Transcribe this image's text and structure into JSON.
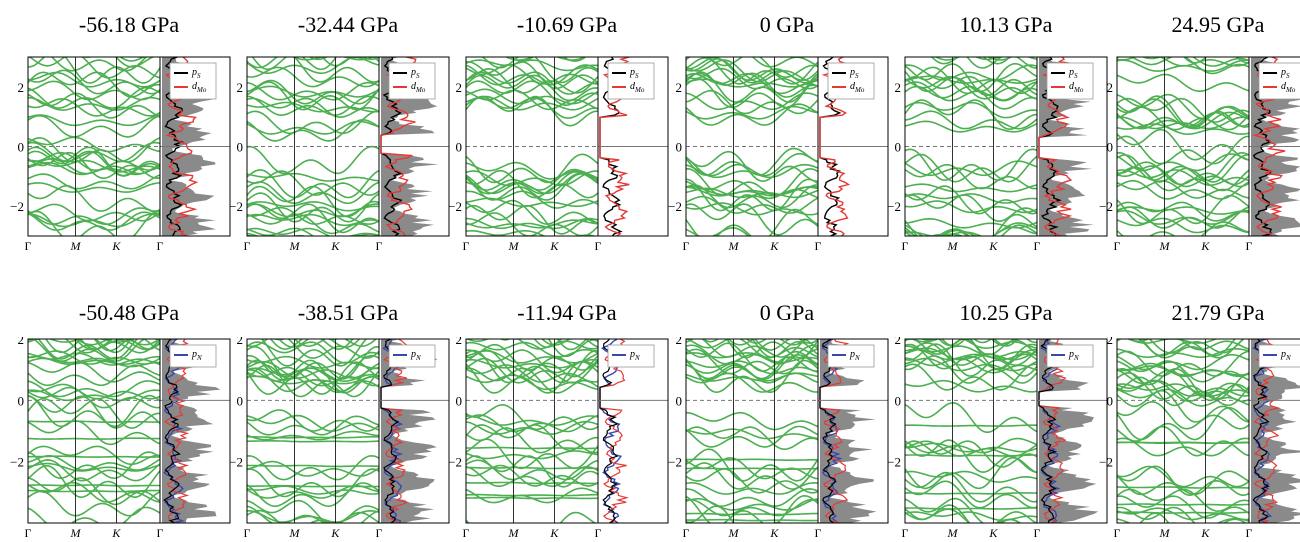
{
  "figure": {
    "band_color": "#4caf50",
    "dos_fill_color": "#8a8a8a",
    "fermi_line_color": "#777777"
  },
  "chart_data": [
    {
      "type": "line",
      "row": 1,
      "title": "-56.18 GPa",
      "kpath": [
        "Γ",
        "M",
        "K",
        "Γ"
      ],
      "yticks": [
        "2",
        "0",
        "−2"
      ],
      "ylim": [
        -3,
        3
      ],
      "legend": [
        {
          "label": "pS",
          "color": "#000000"
        },
        {
          "label": "dMo",
          "color": "#e53935"
        }
      ],
      "gap": [
        0.0,
        0.0
      ],
      "dos_style": "filled"
    },
    {
      "type": "line",
      "row": 1,
      "title": "-32.44 GPa",
      "kpath": [
        "Γ",
        "M",
        "K",
        "Γ"
      ],
      "yticks": [
        "2",
        "0",
        "−2"
      ],
      "ylim": [
        -3,
        3
      ],
      "legend": [
        {
          "label": "pS",
          "color": "#000000"
        },
        {
          "label": "dMo",
          "color": "#e53935"
        }
      ],
      "gap": [
        -0.3,
        0.4
      ],
      "dos_style": "filled"
    },
    {
      "type": "line",
      "row": 1,
      "title": "-10.69 GPa",
      "kpath": [
        "Γ",
        "M",
        "K",
        "Γ"
      ],
      "yticks": [
        "2",
        "0",
        "−2"
      ],
      "ylim": [
        -3,
        3
      ],
      "legend": [
        {
          "label": "pS",
          "color": "#000000"
        },
        {
          "label": "dMo",
          "color": "#e53935"
        }
      ],
      "gap": [
        -0.4,
        1.0
      ],
      "dos_style": "open"
    },
    {
      "type": "line",
      "row": 1,
      "title": "0 GPa",
      "kpath": [
        "Γ",
        "M",
        "K",
        "Γ"
      ],
      "yticks": [
        "2",
        "0",
        "−2"
      ],
      "ylim": [
        -3,
        3
      ],
      "legend": [
        {
          "label": "pS",
          "color": "#000000"
        },
        {
          "label": "dMo",
          "color": "#e53935"
        }
      ],
      "gap": [
        -0.4,
        1.0
      ],
      "dos_style": "open"
    },
    {
      "type": "line",
      "row": 1,
      "title": "10.13 GPa",
      "kpath": [
        "Γ",
        "M",
        "K",
        "Γ"
      ],
      "yticks": [
        "2",
        "0",
        "−2"
      ],
      "ylim": [
        -3,
        3
      ],
      "legend": [
        {
          "label": "pS",
          "color": "#000000"
        },
        {
          "label": "dMo",
          "color": "#e53935"
        }
      ],
      "gap": [
        -0.4,
        0.3
      ],
      "dos_style": "filled"
    },
    {
      "type": "line",
      "row": 1,
      "title": "24.95 GPa",
      "kpath": [
        "Γ",
        "M",
        "K",
        "Γ"
      ],
      "yticks": [
        "2",
        "0",
        "−2"
      ],
      "ylim": [
        -3,
        3
      ],
      "legend": [
        {
          "label": "pS",
          "color": "#000000"
        },
        {
          "label": "dMo",
          "color": "#e53935"
        }
      ],
      "gap": [
        0.0,
        0.0
      ],
      "dos_style": "filled"
    },
    {
      "type": "line",
      "row": 2,
      "title": "-50.48 GPa",
      "kpath": [
        "Γ",
        "M",
        "K",
        "Γ"
      ],
      "yticks": [
        "2",
        "0",
        "−2"
      ],
      "ylim": [
        -4,
        2
      ],
      "legend": [
        {
          "label": "pN",
          "color": "#3949ab"
        }
      ],
      "gap": [
        0.0,
        0.0
      ],
      "dos_style": "filled"
    },
    {
      "type": "line",
      "row": 2,
      "title": "-38.51 GPa",
      "kpath": [
        "Γ",
        "M",
        "K",
        "Γ"
      ],
      "yticks": [
        "2",
        "0",
        "−2"
      ],
      "ylim": [
        -4,
        2
      ],
      "legend": [
        {
          "label": "pN",
          "color": "#3949ab"
        }
      ],
      "gap": [
        -0.3,
        0.5
      ],
      "dos_style": "filled"
    },
    {
      "type": "line",
      "row": 2,
      "title": "-11.94 GPa",
      "kpath": [
        "Γ",
        "M",
        "K",
        "Γ"
      ],
      "yticks": [
        "2",
        "0",
        "−2"
      ],
      "ylim": [
        -4,
        2
      ],
      "legend": [
        {
          "label": "pN",
          "color": "#3949ab"
        }
      ],
      "gap": [
        -0.3,
        0.5
      ],
      "dos_style": "open"
    },
    {
      "type": "line",
      "row": 2,
      "title": "0 GPa",
      "kpath": [
        "Γ",
        "M",
        "K",
        "Γ"
      ],
      "yticks": [
        "2",
        "0",
        "−2"
      ],
      "ylim": [
        -4,
        2
      ],
      "legend": [
        {
          "label": "pN",
          "color": "#3949ab"
        }
      ],
      "gap": [
        -0.3,
        0.5
      ],
      "dos_style": "filled"
    },
    {
      "type": "line",
      "row": 2,
      "title": "10.25  GPa",
      "kpath": [
        "Γ",
        "M",
        "K",
        "Γ"
      ],
      "yticks": [
        "2",
        "0",
        "−2"
      ],
      "ylim": [
        -4,
        2
      ],
      "legend": [
        {
          "label": "pN",
          "color": "#3949ab"
        }
      ],
      "gap": [
        -0.2,
        0.3
      ],
      "dos_style": "filled"
    },
    {
      "type": "line",
      "row": 2,
      "title": "21.79 GPa",
      "kpath": [
        "Γ",
        "M",
        "K",
        "Γ"
      ],
      "yticks": [
        "2",
        "0",
        "−2"
      ],
      "ylim": [
        -4,
        2
      ],
      "legend": [
        {
          "label": "pN",
          "color": "#3949ab"
        }
      ],
      "gap": [
        0.0,
        0.0
      ],
      "dos_style": "filled"
    }
  ]
}
